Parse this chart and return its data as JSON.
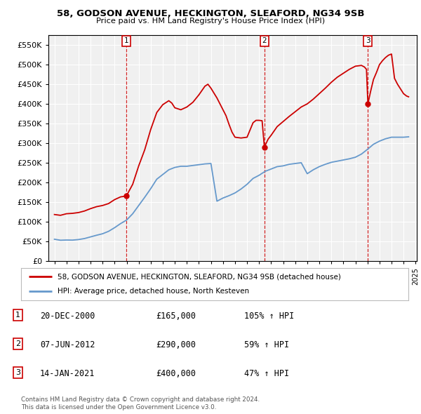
{
  "title": "58, GODSON AVENUE, HECKINGTON, SLEAFORD, NG34 9SB",
  "subtitle": "Price paid vs. HM Land Registry's House Price Index (HPI)",
  "legend_line1": "58, GODSON AVENUE, HECKINGTON, SLEAFORD, NG34 9SB (detached house)",
  "legend_line2": "HPI: Average price, detached house, North Kesteven",
  "footnote1": "Contains HM Land Registry data © Crown copyright and database right 2024.",
  "footnote2": "This data is licensed under the Open Government Licence v3.0.",
  "sale_years": [
    2000.97,
    2012.44,
    2021.04
  ],
  "sale_prices": [
    165000,
    290000,
    400000
  ],
  "vline_color": "#cc0000",
  "red_line_color": "#cc0000",
  "blue_line_color": "#6699cc",
  "ylim": [
    0,
    575000
  ],
  "yticks": [
    0,
    50000,
    100000,
    150000,
    200000,
    250000,
    300000,
    350000,
    400000,
    450000,
    500000,
    550000
  ],
  "background_plot": "#f0f0f0",
  "grid_color": "#ffffff"
}
